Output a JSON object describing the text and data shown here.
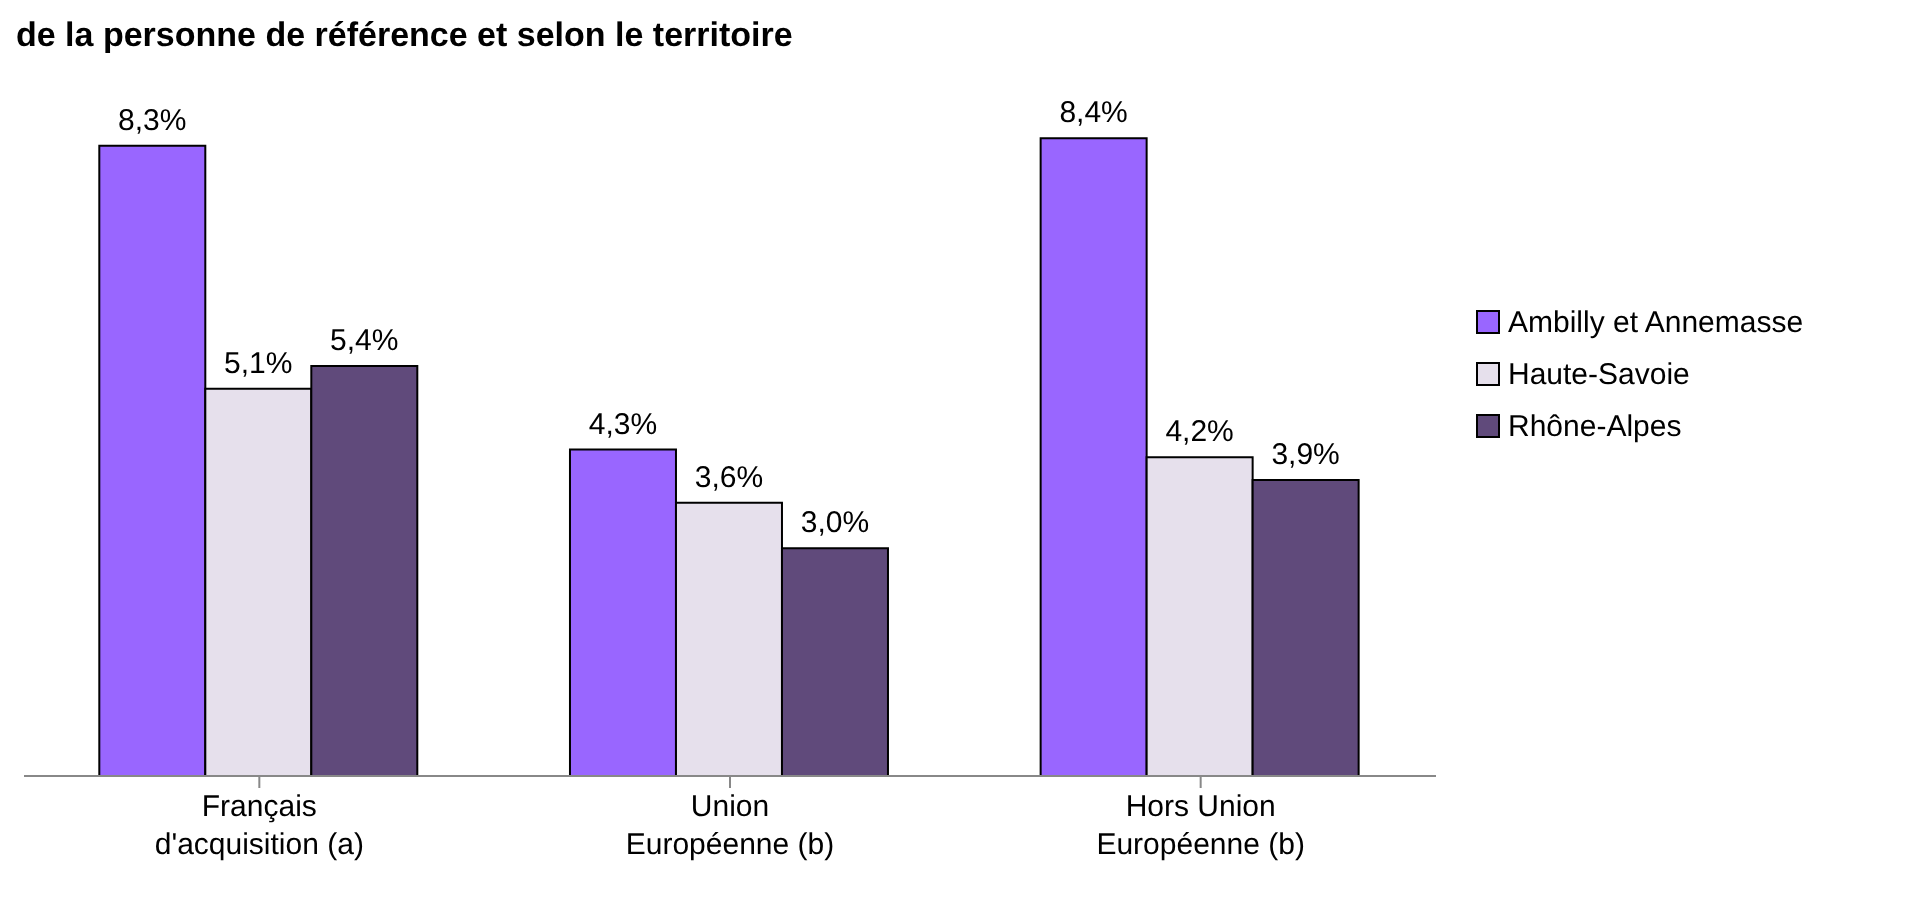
{
  "chart_data": {
    "type": "bar",
    "title": "de la personne de référence et selon le territoire",
    "categories": [
      "Français\nd'acquisition (a)",
      "Union\nEuropéenne (b)",
      "Hors Union\nEuropéenne (b)"
    ],
    "series": [
      {
        "name": "Ambilly et Annemasse",
        "color": "#9966ff",
        "values": [
          8.3,
          4.3,
          8.4
        ],
        "value_labels": [
          "8,3%",
          "4,3%",
          "8,4%"
        ]
      },
      {
        "name": "Haute-Savoie",
        "color": "#e6e0ec",
        "values": [
          5.1,
          3.6,
          4.2
        ],
        "value_labels": [
          "5,1%",
          "3,6%",
          "4,2%"
        ]
      },
      {
        "name": "Rhône-Alpes",
        "color": "#604a7b",
        "values": [
          5.4,
          3.0,
          3.9
        ],
        "value_labels": [
          "5,4%",
          "3,0%",
          "3,9%"
        ]
      }
    ],
    "legend": "right"
  }
}
